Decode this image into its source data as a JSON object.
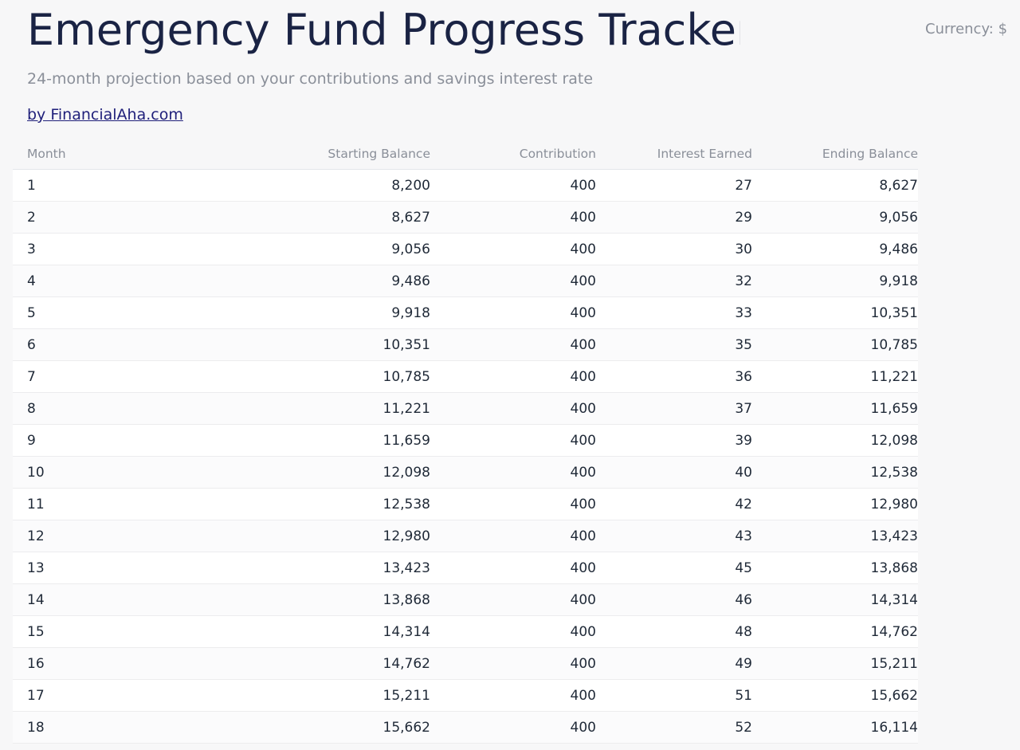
{
  "header": {
    "title": "Emergency Fund Progress Tracker",
    "currency_label": "Currency: $",
    "subtitle": "24-month projection based on your contributions and savings interest rate",
    "byline": "by FinancialAha.com"
  },
  "table": {
    "columns": [
      "Month",
      "Starting Balance",
      "Contribution",
      "Interest Earned",
      "Ending Balance"
    ],
    "rows": [
      [
        "1",
        "8,200",
        "400",
        "27",
        "8,627"
      ],
      [
        "2",
        "8,627",
        "400",
        "29",
        "9,056"
      ],
      [
        "3",
        "9,056",
        "400",
        "30",
        "9,486"
      ],
      [
        "4",
        "9,486",
        "400",
        "32",
        "9,918"
      ],
      [
        "5",
        "9,918",
        "400",
        "33",
        "10,351"
      ],
      [
        "6",
        "10,351",
        "400",
        "35",
        "10,785"
      ],
      [
        "7",
        "10,785",
        "400",
        "36",
        "11,221"
      ],
      [
        "8",
        "11,221",
        "400",
        "37",
        "11,659"
      ],
      [
        "9",
        "11,659",
        "400",
        "39",
        "12,098"
      ],
      [
        "10",
        "12,098",
        "400",
        "40",
        "12,538"
      ],
      [
        "11",
        "12,538",
        "400",
        "42",
        "12,980"
      ],
      [
        "12",
        "12,980",
        "400",
        "43",
        "13,423"
      ],
      [
        "13",
        "13,423",
        "400",
        "45",
        "13,868"
      ],
      [
        "14",
        "13,868",
        "400",
        "46",
        "14,314"
      ],
      [
        "15",
        "14,314",
        "400",
        "48",
        "14,762"
      ],
      [
        "16",
        "14,762",
        "400",
        "49",
        "15,211"
      ],
      [
        "17",
        "15,211",
        "400",
        "51",
        "15,662"
      ],
      [
        "18",
        "15,662",
        "400",
        "52",
        "16,114"
      ]
    ]
  },
  "colors": {
    "title": "#1a2344",
    "muted_text": "#8a8f99",
    "link": "#1f1f7a",
    "body_text": "#1f2937",
    "background": "#f7f7f8"
  }
}
